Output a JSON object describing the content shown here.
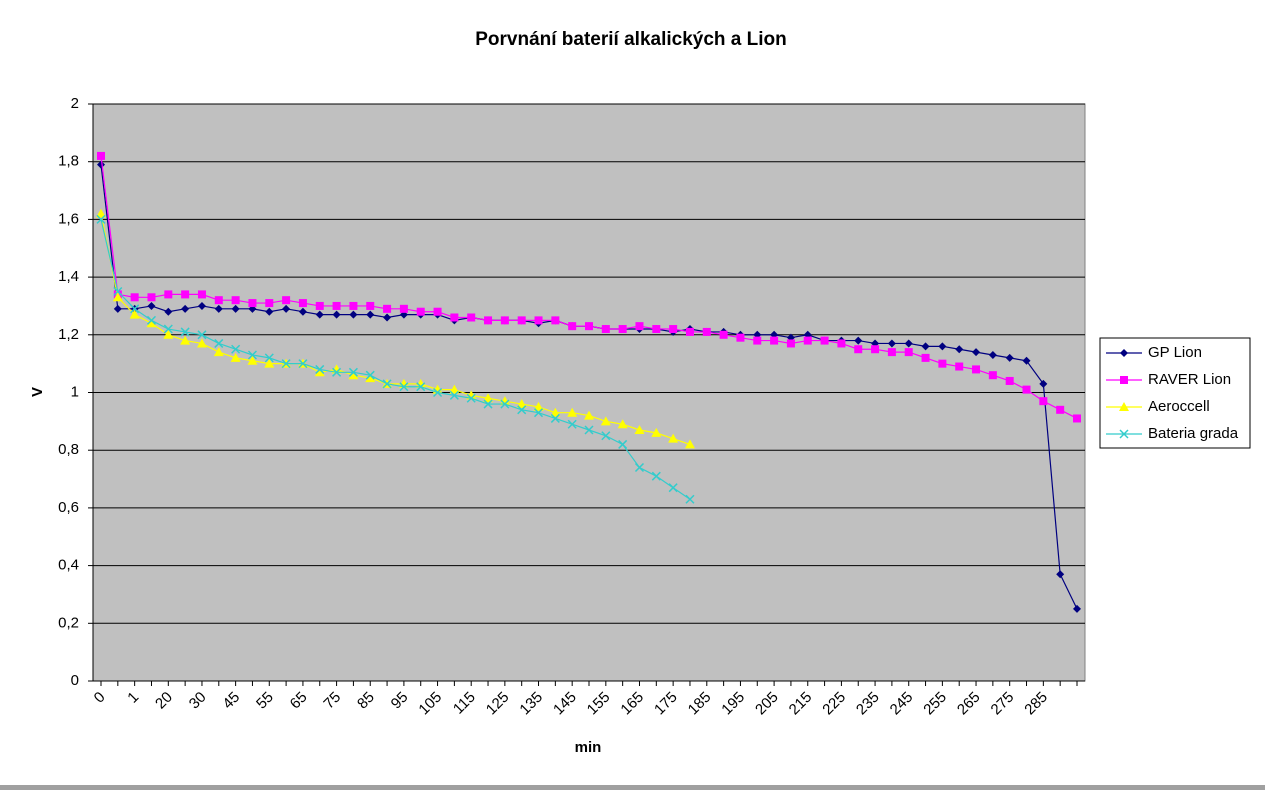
{
  "chart_data": {
    "type": "line",
    "title": "Porvnání baterií alkalických a Lion",
    "x_label": "min",
    "y_label": "V",
    "categories": [
      "0",
      null,
      "1",
      null,
      "20",
      null,
      "30",
      null,
      "45",
      null,
      "55",
      null,
      "65",
      null,
      "75",
      null,
      "85",
      null,
      "95",
      null,
      "105",
      null,
      "115",
      null,
      "125",
      null,
      "135",
      null,
      "145",
      null,
      "155",
      null,
      "165",
      null,
      "175",
      null,
      "185",
      null,
      "195",
      null,
      "205",
      null,
      "215",
      null,
      "225",
      null,
      "235",
      null,
      "245",
      null,
      "255",
      null,
      "265",
      null,
      "275",
      null,
      "285",
      null,
      null
    ],
    "ylim": [
      0,
      2
    ],
    "yticks": [
      0,
      {
        "value": 0.2,
        "label": "0,2"
      },
      {
        "value": 0.4,
        "label": "0,4"
      },
      {
        "value": 0.6,
        "label": "0,6"
      },
      {
        "value": 0.8,
        "label": "0,8"
      },
      1,
      {
        "value": 1.2,
        "label": "1,2"
      },
      {
        "value": 1.4,
        "label": "1,4"
      },
      {
        "value": 1.6,
        "label": "1,6"
      },
      {
        "value": 1.8,
        "label": "1,8"
      },
      2
    ],
    "grid": true,
    "legend": "right",
    "series": [
      {
        "name": "GP Lion",
        "color": "#000080",
        "marker": "diamond",
        "values": [
          1.79,
          1.29,
          1.29,
          1.3,
          1.28,
          1.29,
          1.3,
          1.29,
          1.29,
          1.29,
          1.28,
          1.29,
          1.28,
          1.27,
          1.27,
          1.27,
          1.27,
          1.26,
          1.27,
          1.27,
          1.27,
          1.25,
          1.26,
          1.25,
          1.25,
          1.25,
          1.24,
          1.25,
          1.23,
          1.23,
          1.22,
          1.22,
          1.22,
          1.22,
          1.21,
          1.22,
          1.21,
          1.21,
          1.2,
          1.2,
          1.2,
          1.19,
          1.2,
          1.18,
          1.18,
          1.18,
          1.17,
          1.17,
          1.17,
          1.16,
          1.16,
          1.15,
          1.14,
          1.13,
          1.12,
          1.11,
          1.03,
          0.37,
          0.25
        ]
      },
      {
        "name": "RAVER Lion",
        "color": "#ff00ff",
        "marker": "square",
        "values": [
          1.82,
          1.34,
          1.33,
          1.33,
          1.34,
          1.34,
          1.34,
          1.32,
          1.32,
          1.31,
          1.31,
          1.32,
          1.31,
          1.3,
          1.3,
          1.3,
          1.3,
          1.29,
          1.29,
          1.28,
          1.28,
          1.26,
          1.26,
          1.25,
          1.25,
          1.25,
          1.25,
          1.25,
          1.23,
          1.23,
          1.22,
          1.22,
          1.23,
          1.22,
          1.22,
          1.21,
          1.21,
          1.2,
          1.19,
          1.18,
          1.18,
          1.17,
          1.18,
          1.18,
          1.17,
          1.15,
          1.15,
          1.14,
          1.14,
          1.12,
          1.1,
          1.09,
          1.08,
          1.06,
          1.04,
          1.01,
          0.97,
          0.94,
          0.91
        ]
      },
      {
        "name": "Aeroccell",
        "color": "#ffff00",
        "marker": "triangle",
        "values": [
          1.62,
          1.33,
          1.27,
          1.24,
          1.2,
          1.18,
          1.17,
          1.14,
          1.12,
          1.11,
          1.1,
          1.1,
          1.1,
          1.07,
          1.08,
          1.06,
          1.05,
          1.03,
          1.03,
          1.03,
          1.01,
          1.01,
          0.99,
          0.98,
          0.97,
          0.96,
          0.95,
          0.93,
          0.93,
          0.92,
          0.9,
          0.89,
          0.87,
          0.86,
          0.84,
          0.82,
          null,
          null,
          null,
          null,
          null,
          null,
          null,
          null,
          null,
          null,
          null,
          null,
          null,
          null,
          null,
          null,
          null,
          null,
          null,
          null,
          null,
          null,
          null
        ]
      },
      {
        "name": "Bateria grada",
        "color": "#33cccc",
        "marker": "x",
        "values": [
          1.6,
          1.35,
          1.29,
          1.25,
          1.22,
          1.21,
          1.2,
          1.17,
          1.15,
          1.13,
          1.12,
          1.1,
          1.1,
          1.08,
          1.07,
          1.07,
          1.06,
          1.03,
          1.02,
          1.02,
          1.0,
          0.99,
          0.98,
          0.96,
          0.96,
          0.94,
          0.93,
          0.91,
          0.89,
          0.87,
          0.85,
          0.82,
          0.74,
          0.71,
          0.67,
          0.63,
          null,
          null,
          null,
          null,
          null,
          null,
          null,
          null,
          null,
          null,
          null,
          null,
          null,
          null,
          null,
          null,
          null,
          null,
          null,
          null,
          null,
          null,
          null
        ]
      }
    ]
  }
}
